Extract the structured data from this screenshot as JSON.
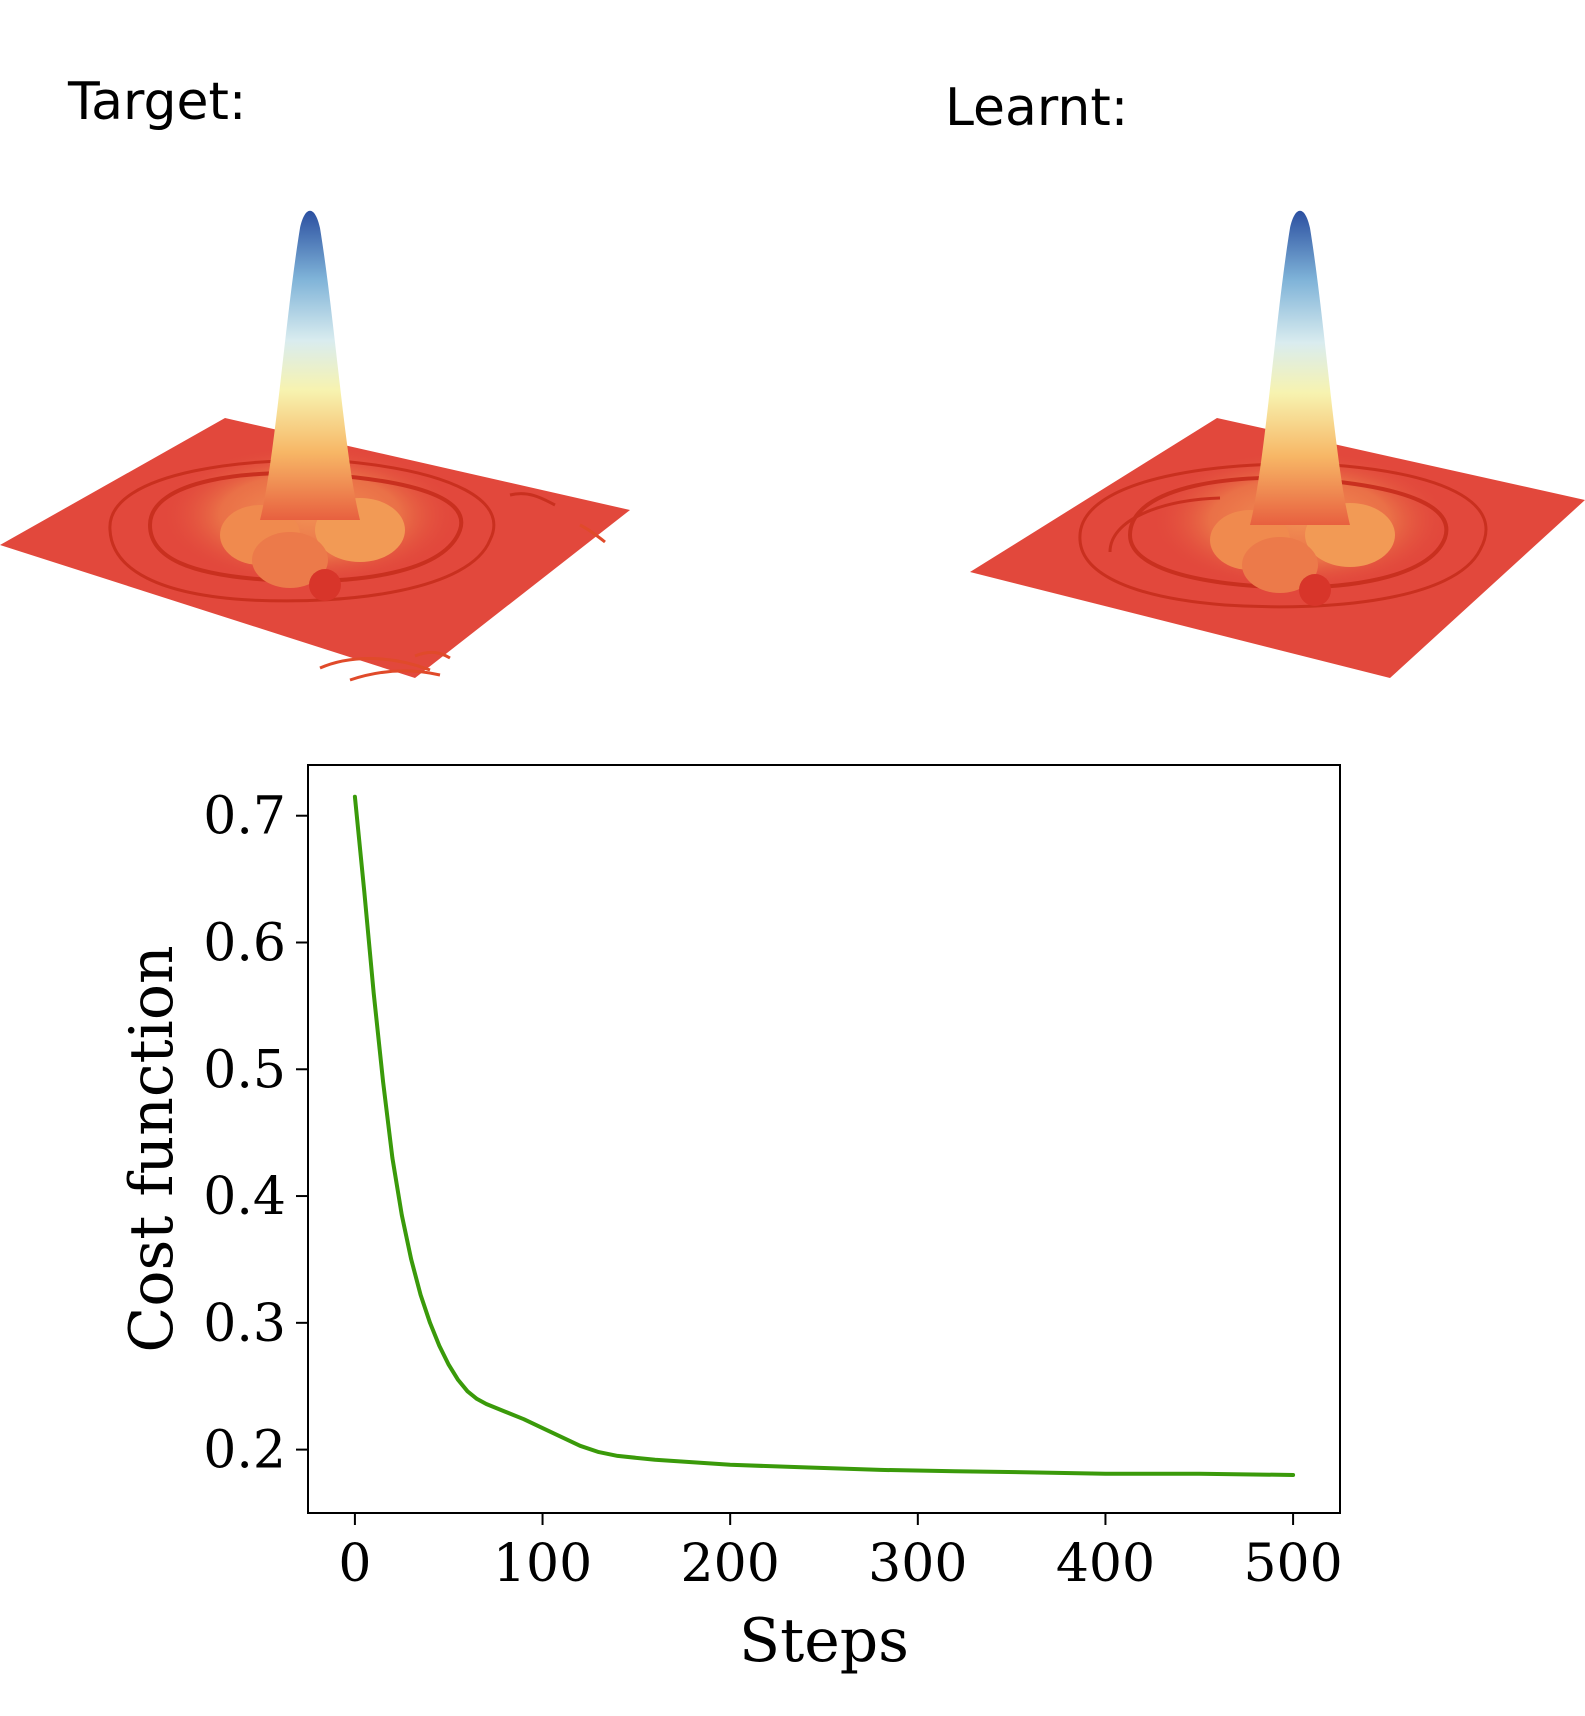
{
  "panels": {
    "target_title": "Target:",
    "learnt_title": "Learnt:"
  },
  "colors": {
    "line": "#3a9a0a",
    "floor": "#e2483c",
    "contour": "#c9301f",
    "peak_top": "#2b4fa0",
    "peak_mid": "#f7f3b0",
    "peak_low": "#f0954a"
  },
  "chart_data": {
    "type": "line",
    "xlabel": "Steps",
    "ylabel": "Cost function",
    "xlim": [
      -25,
      525
    ],
    "ylim": [
      0.15,
      0.74
    ],
    "xticks": [
      0,
      100,
      200,
      300,
      400,
      500
    ],
    "yticks": [
      0.2,
      0.3,
      0.4,
      0.5,
      0.6,
      0.7
    ],
    "grid": false,
    "series": [
      {
        "color": "#3a9a0a",
        "x": [
          0,
          5,
          10,
          15,
          20,
          25,
          30,
          35,
          40,
          45,
          50,
          55,
          60,
          65,
          70,
          80,
          90,
          100,
          110,
          120,
          130,
          140,
          160,
          180,
          200,
          240,
          280,
          320,
          360,
          400,
          450,
          500
        ],
        "y": [
          0.715,
          0.64,
          0.56,
          0.49,
          0.43,
          0.385,
          0.35,
          0.322,
          0.3,
          0.282,
          0.267,
          0.255,
          0.246,
          0.24,
          0.236,
          0.23,
          0.224,
          0.217,
          0.21,
          0.203,
          0.198,
          0.195,
          0.192,
          0.19,
          0.188,
          0.186,
          0.184,
          0.183,
          0.182,
          0.181,
          0.181,
          0.18
        ]
      }
    ]
  }
}
